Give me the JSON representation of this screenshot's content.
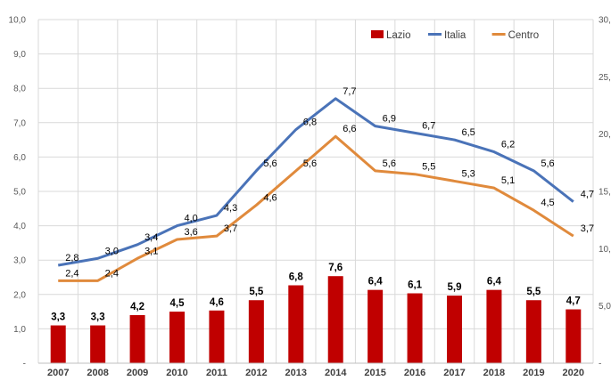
{
  "chart_data": {
    "type": "bar+line",
    "categories": [
      "2007",
      "2008",
      "2009",
      "2010",
      "2011",
      "2012",
      "2013",
      "2014",
      "2015",
      "2016",
      "2017",
      "2018",
      "2019",
      "2020"
    ],
    "series": [
      {
        "name": "Lazio",
        "type": "bar",
        "axis": "right",
        "color": "#c00000",
        "values": [
          3.3,
          3.3,
          4.2,
          4.5,
          4.6,
          5.5,
          6.8,
          7.6,
          6.4,
          6.1,
          5.9,
          6.4,
          5.5,
          4.7
        ],
        "labels": [
          "3,3",
          "3,3",
          "4,2",
          "4,5",
          "4,6",
          "5,5",
          "6,8",
          "7,6",
          "6,4",
          "6,1",
          "5,9",
          "6,4",
          "5,5",
          "4,7"
        ]
      },
      {
        "name": "Italia",
        "type": "line",
        "axis": "left",
        "color": "#4a73b8",
        "values": [
          2.85,
          3.05,
          3.45,
          4.0,
          4.3,
          5.6,
          6.8,
          7.7,
          6.9,
          6.7,
          6.5,
          6.15,
          5.6,
          4.7
        ],
        "labels": [
          "2,8",
          "3,0",
          "3,4",
          "4,0",
          "4,3",
          "5,6",
          "6,8",
          "7,7",
          "6,9",
          "6,7",
          "6,5",
          "6,2",
          "5,6",
          "4,7"
        ]
      },
      {
        "name": "Centro",
        "type": "line",
        "axis": "left",
        "color": "#e08a3c",
        "values": [
          2.4,
          2.4,
          3.05,
          3.6,
          3.7,
          4.6,
          5.6,
          6.6,
          5.6,
          5.5,
          5.3,
          5.1,
          4.45,
          3.7
        ],
        "labels": [
          "2,4",
          "2,4",
          "3,1",
          "3,6",
          "3,7",
          "4,6",
          "5,6",
          "6,6",
          "5,6",
          "5,5",
          "5,3",
          "5,1",
          "4,5",
          "3,7"
        ]
      }
    ],
    "y_left": {
      "ylim": [
        0,
        10
      ],
      "ticks": [
        "-",
        "1,0",
        "2,0",
        "3,0",
        "4,0",
        "5,0",
        "6,0",
        "7,0",
        "8,0",
        "9,0",
        "10,0"
      ]
    },
    "y_right": {
      "ylim": [
        0,
        30
      ],
      "ticks": [
        "-",
        "5,0",
        "10,",
        "15,",
        "20,",
        "25,",
        "30,"
      ]
    },
    "grid": true,
    "legend": "top-right"
  }
}
